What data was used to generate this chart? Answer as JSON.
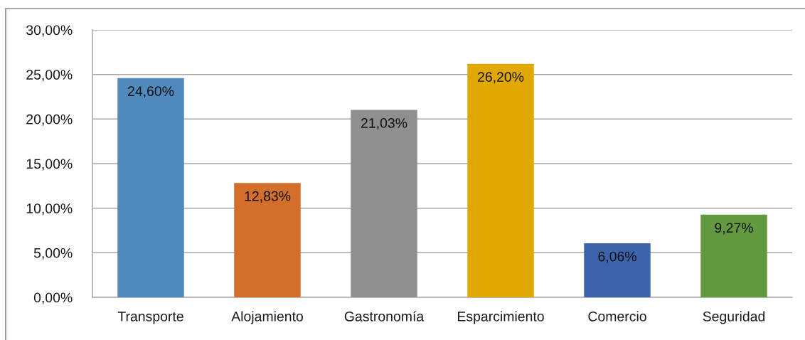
{
  "chart_data": {
    "type": "bar",
    "categories": [
      "Transporte",
      "Alojamiento",
      "Gastronomía",
      "Esparcimiento",
      "Comercio",
      "Seguridad"
    ],
    "values": [
      24.6,
      12.83,
      21.03,
      26.2,
      6.06,
      9.27
    ],
    "colors": [
      "#4f89bd",
      "#d46e2b",
      "#8f8f8f",
      "#e1a800",
      "#3d64aa",
      "#63993f"
    ],
    "value_labels": [
      "24,60%",
      "12,83%",
      "21,03%",
      "26,20%",
      "6,06%",
      "9,27%"
    ],
    "ylim": [
      0,
      30
    ],
    "yticks": [
      {
        "value": 0,
        "label": "0,00%"
      },
      {
        "value": 5,
        "label": "5,00%"
      },
      {
        "value": 10,
        "label": "10,00%"
      },
      {
        "value": 15,
        "label": "15,00%"
      },
      {
        "value": 20,
        "label": "20,00%"
      },
      {
        "value": 25,
        "label": "25,00%"
      },
      {
        "value": 30,
        "label": "30,00%"
      }
    ],
    "grid": "y",
    "legend": false
  }
}
